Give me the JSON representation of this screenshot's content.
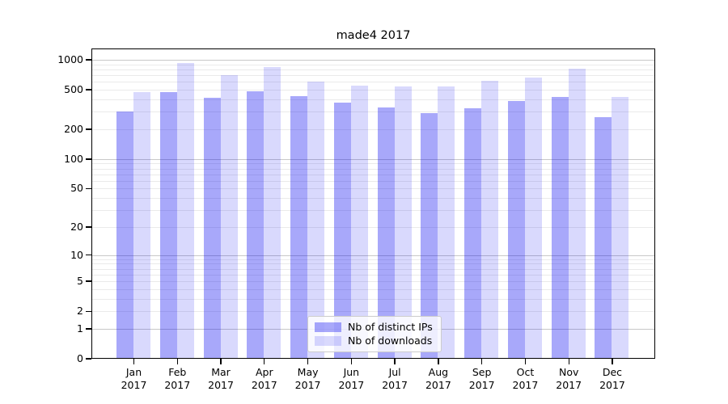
{
  "chart_data": {
    "type": "bar",
    "title": "made4 2017",
    "categories": [
      "Jan",
      "Feb",
      "Mar",
      "Apr",
      "May",
      "Jun",
      "Jul",
      "Aug",
      "Sep",
      "Oct",
      "Nov",
      "Dec"
    ],
    "category_year": "2017",
    "series": [
      {
        "name": "Nb of distinct IPs",
        "color": "rgba(0,0,240,0.34)",
        "values": [
          300,
          475,
          415,
          480,
          430,
          370,
          335,
          290,
          325,
          385,
          425,
          265
        ]
      },
      {
        "name": "Nb of downloads",
        "color": "rgba(0,0,240,0.15)",
        "values": [
          470,
          925,
          700,
          840,
          605,
          555,
          545,
          540,
          620,
          665,
          820,
          425
        ]
      }
    ],
    "xlabel": "",
    "ylabel": "",
    "yscale": "log1p",
    "ylim": [
      0,
      1300
    ],
    "yticks": [
      0,
      1,
      2,
      5,
      10,
      20,
      50,
      100,
      200,
      500,
      1000
    ],
    "grid_major": [
      1,
      10,
      100,
      1000
    ],
    "grid_minor": [
      2,
      3,
      4,
      5,
      6,
      7,
      8,
      9,
      20,
      30,
      40,
      50,
      60,
      70,
      80,
      90,
      200,
      300,
      400,
      500,
      600,
      700,
      800,
      900
    ],
    "legend_position": "lower center"
  },
  "colors": {
    "grid_major": "#c8c8c8",
    "grid_minor": "#eaeaea",
    "spine": "#000000",
    "legend_border": "#cccccc"
  }
}
